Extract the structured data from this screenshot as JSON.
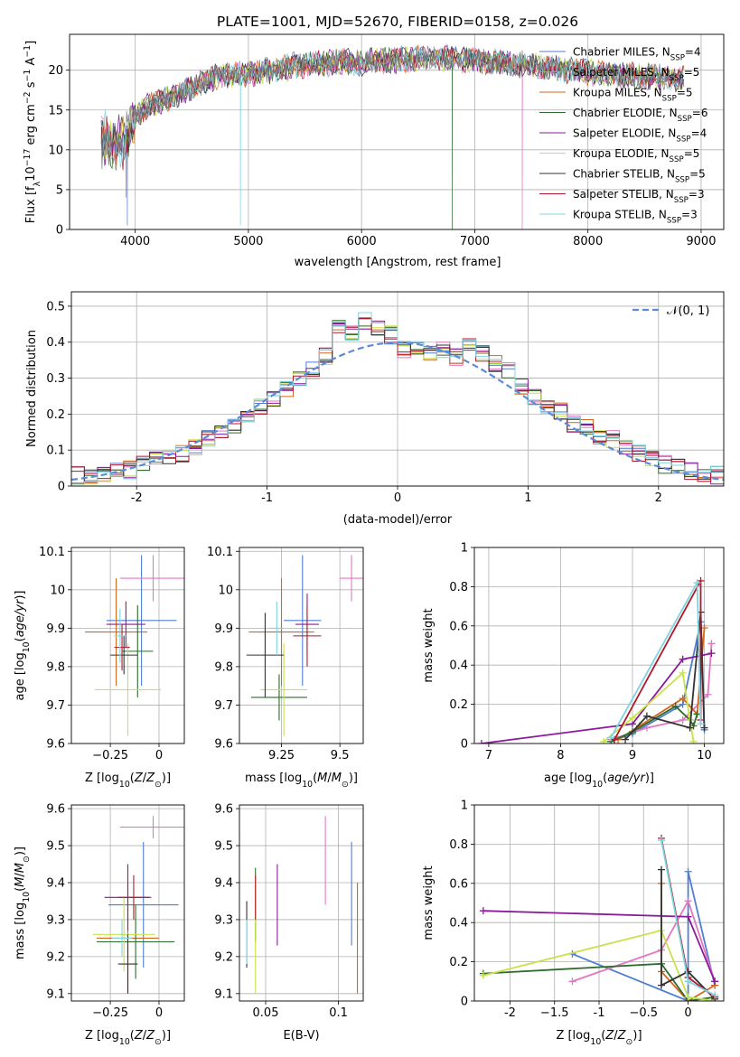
{
  "title": "PLATE=1001, MJD=52670, FIBERID=0158, z=0.026",
  "models": [
    {
      "name": "Chabrier MILES, N_SSP=4",
      "base": "Chabrier MILES, N",
      "sub": "SSP",
      "tail": "=4",
      "color": "#4f7fd0"
    },
    {
      "name": "Salpeter MILES, N_SSP=5",
      "base": "Salpeter MILES, N",
      "sub": "SSP",
      "tail": "=5",
      "color": "#e377c2"
    },
    {
      "name": "Kroupa MILES, N_SSP=5",
      "base": "Kroupa MILES, N",
      "sub": "SSP",
      "tail": "=5",
      "color": "#d2691e"
    },
    {
      "name": "Chabrier ELODIE, N_SSP=6",
      "base": "Chabrier ELODIE, N",
      "sub": "SSP",
      "tail": "=6",
      "color": "#2e6b2e"
    },
    {
      "name": "Salpeter ELODIE, N_SSP=4",
      "base": "Salpeter ELODIE, N",
      "sub": "SSP",
      "tail": "=4",
      "color": "#8b1a9b"
    },
    {
      "name": "Kroupa ELODIE, N_SSP=5",
      "base": "Kroupa ELODIE, N",
      "sub": "SSP",
      "tail": "=5",
      "color": "#c8e24a"
    },
    {
      "name": "Chabrier STELIB, N_SSP=5",
      "base": "Chabrier STELIB, N",
      "sub": "SSP",
      "tail": "=5",
      "color": "#333333"
    },
    {
      "name": "Salpeter STELIB, N_SSP=3",
      "base": "Salpeter STELIB, N",
      "sub": "SSP",
      "tail": "=3",
      "color": "#b2182b"
    },
    {
      "name": "Kroupa STELIB, N_SSP=3",
      "base": "Kroupa STELIB, N",
      "sub": "SSP",
      "tail": "=3",
      "color": "#7fd4e0"
    }
  ],
  "chart_data": [
    {
      "type": "line",
      "xlabel": "wavelength [Angstrom, rest frame]",
      "ylabel": "Flux [f_λ10^-17 erg cm^-2 s^-1 A^-1]",
      "xlim": [
        3420,
        9200
      ],
      "ylim": [
        0,
        24.5
      ],
      "xticks": [
        4000,
        5000,
        6000,
        7000,
        8000,
        9000
      ],
      "yticks": [
        0,
        5,
        10,
        15,
        20
      ],
      "spectrum_x": [
        3700,
        3800,
        3900,
        4000,
        4100,
        4200,
        4300,
        4400,
        4600,
        4800,
        5000,
        5200,
        5400,
        5600,
        5800,
        6000,
        6200,
        6400,
        6600,
        6800,
        7000,
        7200,
        7400,
        7600,
        7800,
        8000,
        8200,
        8400,
        8600,
        8800
      ],
      "spectrum_y": [
        11.5,
        10.5,
        11,
        14,
        15.5,
        16,
        16.5,
        17,
        18.5,
        19.5,
        19.5,
        20,
        20.5,
        20.8,
        21,
        21,
        21.2,
        21.4,
        21.5,
        21.5,
        21.2,
        21,
        20.8,
        20.5,
        20,
        19.8,
        19.5,
        19.3,
        19.2,
        19
      ]
    },
    {
      "type": "step",
      "xlabel": "(data-model)/error",
      "ylabel": "Normed distribution",
      "xlim": [
        -2.5,
        2.5
      ],
      "ylim": [
        0,
        0.54
      ],
      "xticks": [
        -2,
        -1,
        0,
        1,
        2
      ],
      "yticks": [
        0.0,
        0.1,
        0.2,
        0.3,
        0.4,
        0.5
      ],
      "legend": "𝒩(0, 1)",
      "bin_edges": [
        -2.5,
        -2.4,
        -2.3,
        -2.2,
        -2.1,
        -2.0,
        -1.9,
        -1.8,
        -1.7,
        -1.6,
        -1.5,
        -1.4,
        -1.3,
        -1.2,
        -1.1,
        -1.0,
        -0.9,
        -0.8,
        -0.7,
        -0.6,
        -0.5,
        -0.4,
        -0.3,
        -0.2,
        -0.1,
        0.0,
        0.1,
        0.2,
        0.3,
        0.4,
        0.5,
        0.6,
        0.7,
        0.8,
        0.9,
        1.0,
        1.1,
        1.2,
        1.3,
        1.4,
        1.5,
        1.6,
        1.7,
        1.8,
        1.9,
        2.0,
        2.1,
        2.2,
        2.3,
        2.4,
        2.5
      ],
      "hist_base": [
        0.03,
        0.03,
        0.035,
        0.04,
        0.045,
        0.06,
        0.07,
        0.08,
        0.09,
        0.11,
        0.13,
        0.15,
        0.17,
        0.2,
        0.22,
        0.24,
        0.27,
        0.3,
        0.32,
        0.36,
        0.45,
        0.42,
        0.46,
        0.44,
        0.42,
        0.38,
        0.39,
        0.37,
        0.38,
        0.36,
        0.39,
        0.37,
        0.34,
        0.32,
        0.28,
        0.25,
        0.22,
        0.21,
        0.17,
        0.16,
        0.14,
        0.13,
        0.11,
        0.09,
        0.08,
        0.06,
        0.05,
        0.04,
        0.035,
        0.03
      ]
    },
    {
      "type": "errorbar",
      "xlabel": "Z [log10(Z/Z⊙)]",
      "ylabel": "age [log10(age/yr)]",
      "xlim": [
        -0.45,
        0.13
      ],
      "ylim": [
        9.6,
        10.11
      ],
      "xticks": [
        -0.25,
        0.0
      ],
      "yticks": [
        9.6,
        9.7,
        9.8,
        9.9,
        10.0,
        10.1
      ],
      "points": [
        {
          "x": -0.09,
          "y": 9.92,
          "xerr": 0.18,
          "yerr": 0.17
        },
        {
          "x": -0.03,
          "y": 10.03,
          "xerr": 0.17,
          "yerr": 0.06
        },
        {
          "x": -0.22,
          "y": 9.89,
          "xerr": 0.16,
          "yerr": 0.14
        },
        {
          "x": -0.11,
          "y": 9.84,
          "xerr": 0.08,
          "yerr": 0.12
        },
        {
          "x": -0.17,
          "y": 9.91,
          "xerr": 0.1,
          "yerr": 0.06
        },
        {
          "x": -0.16,
          "y": 9.74,
          "xerr": 0.17,
          "yerr": 0.12
        },
        {
          "x": -0.18,
          "y": 9.83,
          "xerr": 0.07,
          "yerr": 0.05
        },
        {
          "x": -0.19,
          "y": 9.85,
          "xerr": 0.04,
          "yerr": 0.06
        },
        {
          "x": -0.2,
          "y": 9.88,
          "xerr": 0.03,
          "yerr": 0.07
        }
      ]
    },
    {
      "type": "errorbar",
      "xlabel": "mass [log10(M/M⊙)]",
      "ylabel": "",
      "xlim": [
        9.07,
        9.6
      ],
      "ylim": [
        9.6,
        10.11
      ],
      "xticks": [
        9.25,
        9.5
      ],
      "yticks": [
        9.6,
        9.7,
        9.8,
        9.9,
        10.0,
        10.1
      ],
      "points": [
        {
          "x": 9.34,
          "y": 9.92,
          "xerr": 0.08,
          "yerr": 0.17
        },
        {
          "x": 9.55,
          "y": 10.03,
          "xerr": 0.05,
          "yerr": 0.06
        },
        {
          "x": 9.25,
          "y": 9.89,
          "xerr": 0.14,
          "yerr": 0.14
        },
        {
          "x": 9.24,
          "y": 9.72,
          "xerr": 0.12,
          "yerr": 0.06
        },
        {
          "x": 9.36,
          "y": 9.91,
          "xerr": 0.05,
          "yerr": 0.08
        },
        {
          "x": 9.26,
          "y": 9.74,
          "xerr": 0.1,
          "yerr": 0.12
        },
        {
          "x": 9.18,
          "y": 9.83,
          "xerr": 0.08,
          "yerr": 0.11
        },
        {
          "x": 9.36,
          "y": 9.88,
          "xerr": 0.06,
          "yerr": 0.08
        },
        {
          "x": 9.23,
          "y": 9.9,
          "xerr": 0.03,
          "yerr": 0.07
        }
      ]
    },
    {
      "type": "line",
      "xlabel": "age  [log10(age/yr)]",
      "ylabel": "mass weight",
      "xlim": [
        6.8,
        10.27
      ],
      "ylim": [
        0,
        1.0
      ],
      "xticks": [
        7,
        8,
        9,
        10
      ],
      "yticks": [
        0.0,
        0.2,
        0.4,
        0.6,
        0.8,
        1.0
      ],
      "series": [
        {
          "x": [
            8.7,
            9.0,
            9.7,
            9.95,
            10.0
          ],
          "y": [
            0.01,
            0.05,
            0.2,
            0.62,
            0.07
          ]
        },
        {
          "x": [
            8.7,
            9.2,
            9.7,
            10.05,
            10.1
          ],
          "y": [
            0.02,
            0.08,
            0.12,
            0.25,
            0.51
          ]
        },
        {
          "x": [
            8.8,
            9.1,
            9.7,
            9.9,
            10.0
          ],
          "y": [
            0.02,
            0.09,
            0.23,
            0.15,
            0.59
          ]
        },
        {
          "x": [
            8.7,
            9.0,
            9.6,
            9.8,
            9.85,
            9.9
          ],
          "y": [
            0.01,
            0.06,
            0.19,
            0.12,
            0.09,
            0.15
          ]
        },
        {
          "x": [
            6.9,
            9.0,
            9.7,
            10.1
          ],
          "y": [
            0.0,
            0.1,
            0.43,
            0.46
          ]
        },
        {
          "x": [
            8.6,
            9.0,
            9.7,
            9.8,
            9.85
          ],
          "y": [
            0.01,
            0.13,
            0.36,
            0.12,
            0.01
          ]
        },
        {
          "x": [
            8.9,
            9.2,
            9.8,
            9.95,
            10.0
          ],
          "y": [
            0.02,
            0.14,
            0.08,
            0.67,
            0.08
          ]
        },
        {
          "x": [
            8.75,
            9.95,
            9.95
          ],
          "y": [
            0.02,
            0.83,
            0.12
          ]
        },
        {
          "x": [
            8.7,
            9.9,
            9.95
          ],
          "y": [
            0.03,
            0.82,
            0.1
          ]
        }
      ]
    },
    {
      "type": "errorbar",
      "xlabel": "Z [log10(Z/Z⊙)]",
      "ylabel": "mass [log10(M/M⊙)]",
      "xlim": [
        -0.45,
        0.13
      ],
      "ylim": [
        9.08,
        9.61
      ],
      "xticks": [
        -0.25,
        0.0
      ],
      "yticks": [
        9.1,
        9.2,
        9.3,
        9.4,
        9.5,
        9.6
      ],
      "points": [
        {
          "x": -0.08,
          "y": 9.34,
          "xerr": 0.18,
          "yerr": 0.17
        },
        {
          "x": -0.03,
          "y": 9.55,
          "xerr": 0.17,
          "yerr": 0.03
        },
        {
          "x": -0.16,
          "y": 9.25,
          "xerr": 0.16,
          "yerr": 0.15
        },
        {
          "x": -0.12,
          "y": 9.24,
          "xerr": 0.2,
          "yerr": 0.1
        },
        {
          "x": -0.16,
          "y": 9.36,
          "xerr": 0.12,
          "yerr": 0.09
        },
        {
          "x": -0.18,
          "y": 9.26,
          "xerr": 0.16,
          "yerr": 0.1
        },
        {
          "x": -0.16,
          "y": 9.18,
          "xerr": 0.05,
          "yerr": 0.08
        },
        {
          "x": -0.13,
          "y": 9.36,
          "xerr": 0.08,
          "yerr": 0.06
        },
        {
          "x": -0.19,
          "y": 9.25,
          "xerr": 0.05,
          "yerr": 0.05
        }
      ]
    },
    {
      "type": "errorbar",
      "xlabel": "E(B-V)",
      "ylabel": "",
      "xlim": [
        0.032,
        0.117
      ],
      "ylim": [
        9.08,
        9.61
      ],
      "xticks": [
        0.05,
        0.1
      ],
      "yticks": [
        9.1,
        9.2,
        9.3,
        9.4,
        9.5,
        9.6
      ],
      "points": [
        {
          "x": 0.109,
          "y": 9.37,
          "xerr": 0.0,
          "yerr": 0.14
        },
        {
          "x": 0.091,
          "y": 9.46,
          "xerr": 0.0,
          "yerr": 0.12
        },
        {
          "x": 0.113,
          "y": 9.25,
          "xerr": 0.0,
          "yerr": 0.15
        },
        {
          "x": 0.043,
          "y": 9.34,
          "xerr": 0.0,
          "yerr": 0.1
        },
        {
          "x": 0.058,
          "y": 9.34,
          "xerr": 0.0,
          "yerr": 0.11
        },
        {
          "x": 0.043,
          "y": 9.26,
          "xerr": 0.0,
          "yerr": 0.16
        },
        {
          "x": 0.037,
          "y": 9.26,
          "xerr": 0.0,
          "yerr": 0.09
        },
        {
          "x": 0.043,
          "y": 9.36,
          "xerr": 0.0,
          "yerr": 0.06
        },
        {
          "x": 0.037,
          "y": 9.24,
          "xerr": 0.0,
          "yerr": 0.06
        }
      ]
    },
    {
      "type": "line",
      "xlabel": "Z [log10(Z/Z⊙)]",
      "ylabel": "mass weight",
      "xlim": [
        -2.4,
        0.4
      ],
      "ylim": [
        0,
        1.0
      ],
      "xticks": [
        -2.0,
        -1.5,
        -1.0,
        -0.5,
        0.0
      ],
      "yticks": [
        0.0,
        0.2,
        0.4,
        0.6,
        0.8,
        1.0
      ],
      "series": [
        {
          "x": [
            -1.3,
            0.0,
            0.0,
            0.3
          ],
          "y": [
            0.24,
            0.0,
            0.66,
            0.08
          ]
        },
        {
          "x": [
            -1.3,
            -0.3,
            0.0,
            0.3
          ],
          "y": [
            0.1,
            0.26,
            0.51,
            0.1
          ]
        },
        {
          "x": [
            -0.3,
            -0.3,
            0.0,
            0.3
          ],
          "y": [
            0.6,
            0.15,
            0.0,
            0.08
          ]
        },
        {
          "x": [
            -2.3,
            -0.3,
            0.0,
            0.3
          ],
          "y": [
            0.14,
            0.19,
            0.0,
            0.02
          ]
        },
        {
          "x": [
            -2.3,
            0.0,
            0.3
          ],
          "y": [
            0.46,
            0.43,
            0.1
          ]
        },
        {
          "x": [
            -2.3,
            -0.3,
            0.0,
            0.3
          ],
          "y": [
            0.13,
            0.36,
            0.02,
            0.0
          ]
        },
        {
          "x": [
            -0.3,
            -0.3,
            0.0,
            0.3
          ],
          "y": [
            0.67,
            0.08,
            0.15,
            0.01
          ]
        },
        {
          "x": [
            -0.3,
            0.0,
            0.3
          ],
          "y": [
            0.83,
            0.12,
            0.02
          ]
        },
        {
          "x": [
            -0.3,
            0.0,
            0.3
          ],
          "y": [
            0.82,
            0.1,
            0.03
          ]
        }
      ]
    }
  ]
}
